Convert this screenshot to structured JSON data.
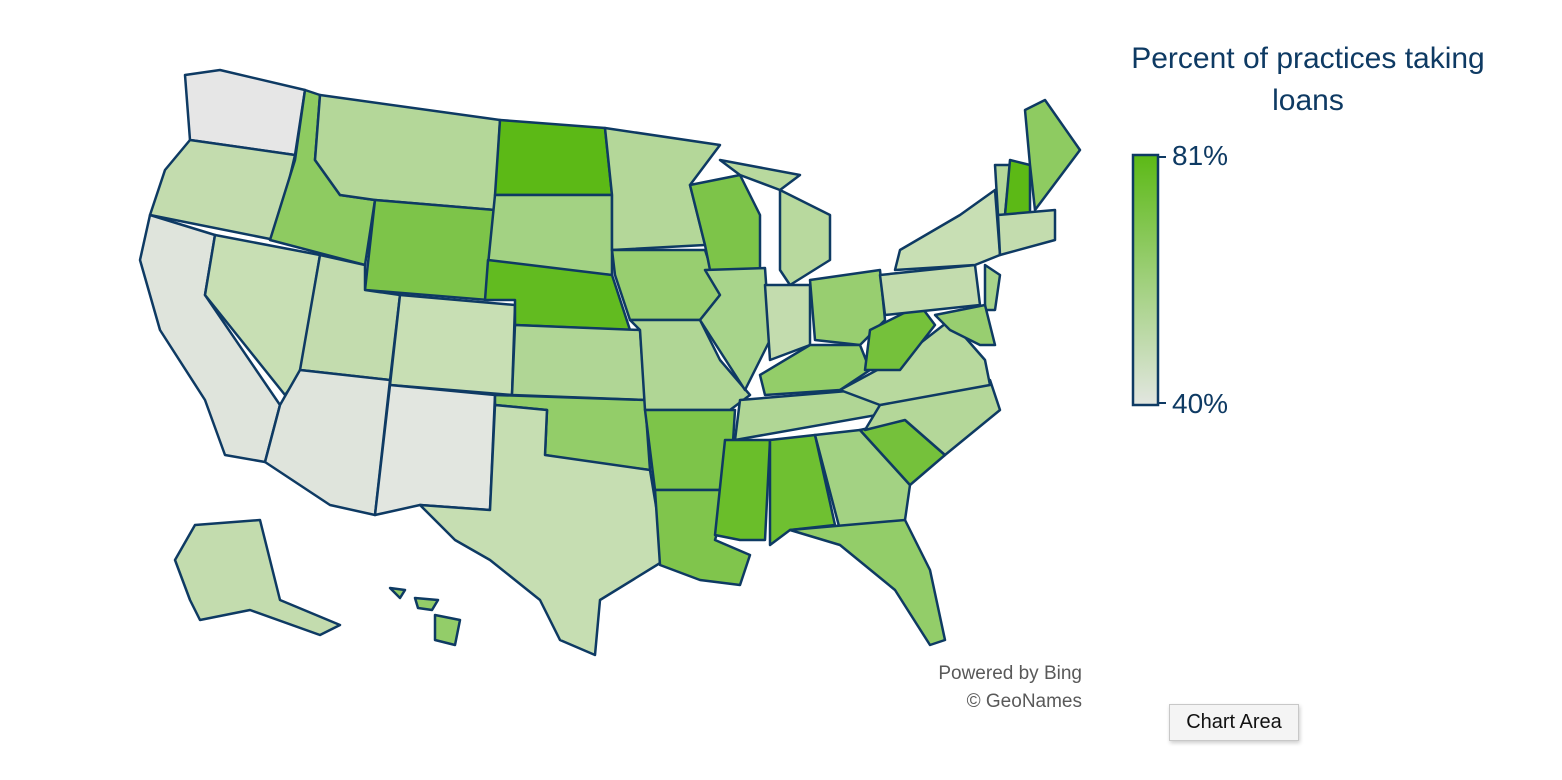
{
  "legend_title": "Percent of practices taking loans",
  "legend": {
    "max": {
      "value": 81,
      "label": "81%"
    },
    "min": {
      "value": 40,
      "label": "40%"
    },
    "colors": [
      "#5cb916",
      "#e2e6e0"
    ]
  },
  "attribution": [
    "Powered by Bing",
    "© GeoNames"
  ],
  "tooltip": "Chart Area"
}
